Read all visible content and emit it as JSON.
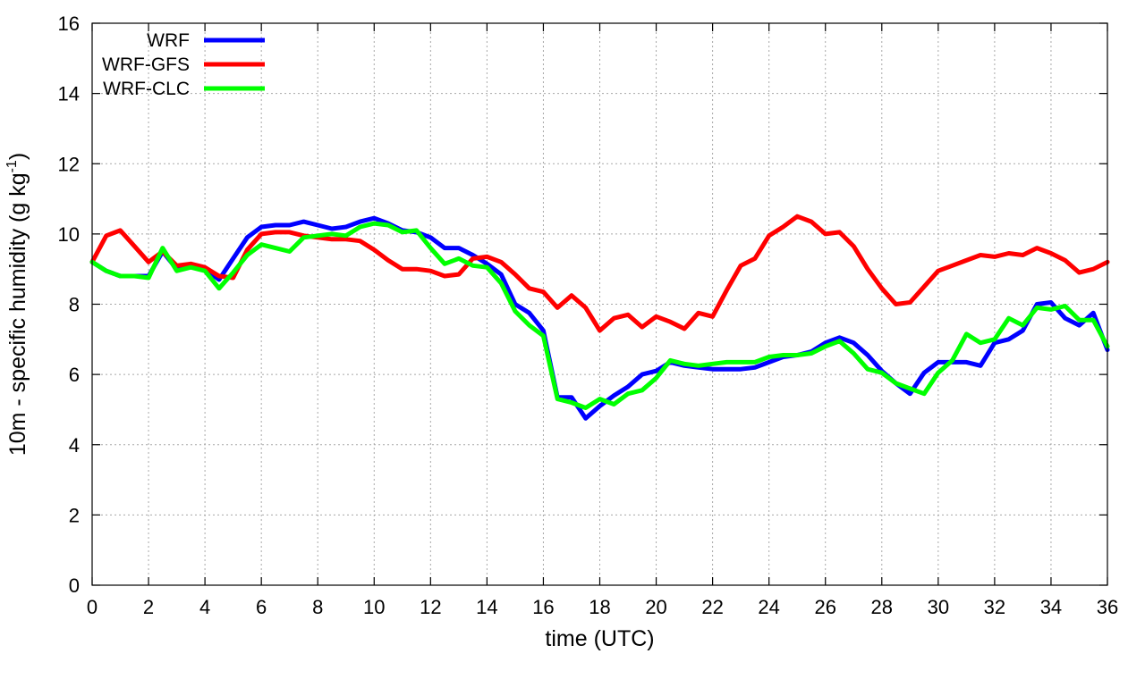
{
  "chart_data": {
    "type": "line",
    "xlabel": "time (UTC)",
    "ylabel": "10m - specific humidity (g kg",
    "ylabel_sup": "-1",
    "ylabel_close": ")",
    "xlim": [
      0,
      36
    ],
    "ylim": [
      0,
      16
    ],
    "xticks": [
      0,
      2,
      4,
      6,
      8,
      10,
      12,
      14,
      16,
      18,
      20,
      22,
      24,
      26,
      28,
      30,
      32,
      34,
      36
    ],
    "yticks": [
      0,
      2,
      4,
      6,
      8,
      10,
      12,
      14,
      16
    ],
    "grid": true,
    "legend_position": "top-left",
    "x": [
      0,
      0.5,
      1,
      1.5,
      2,
      2.5,
      3,
      3.5,
      4,
      4.5,
      5,
      5.5,
      6,
      6.5,
      7,
      7.5,
      8,
      8.5,
      9,
      9.5,
      10,
      10.5,
      11,
      11.5,
      12,
      12.5,
      13,
      13.5,
      14,
      14.5,
      15,
      15.5,
      16,
      16.5,
      17,
      17.5,
      18,
      18.5,
      19,
      19.5,
      20,
      20.5,
      21,
      21.5,
      22,
      22.5,
      23,
      23.5,
      24,
      24.5,
      25,
      25.5,
      26,
      26.5,
      27,
      27.5,
      28,
      28.5,
      29,
      29.5,
      30,
      30.5,
      31,
      31.5,
      32,
      32.5,
      33,
      33.5,
      34,
      34.5,
      35,
      35.5,
      36
    ],
    "series": [
      {
        "name": "WRF",
        "color": "#0000ff",
        "values": [
          9.2,
          8.95,
          8.8,
          8.8,
          8.8,
          9.5,
          9.0,
          9.1,
          9.0,
          8.7,
          9.3,
          9.9,
          10.2,
          10.25,
          10.25,
          10.35,
          10.25,
          10.15,
          10.2,
          10.35,
          10.45,
          10.3,
          10.1,
          10.05,
          9.9,
          9.6,
          9.6,
          9.4,
          9.15,
          8.85,
          8.0,
          7.75,
          7.25,
          5.35,
          5.35,
          4.75,
          5.1,
          5.4,
          5.65,
          6.0,
          6.1,
          6.35,
          6.25,
          6.2,
          6.15,
          6.15,
          6.15,
          6.2,
          6.35,
          6.5,
          6.55,
          6.65,
          6.9,
          7.05,
          6.9,
          6.55,
          6.1,
          5.75,
          5.45,
          6.05,
          6.35,
          6.35,
          6.35,
          6.25,
          6.9,
          7.0,
          7.25,
          8.0,
          8.05,
          7.6,
          7.4,
          7.75,
          6.7
        ]
      },
      {
        "name": "WRF-GFS",
        "color": "#ff0000",
        "values": [
          9.2,
          9.95,
          10.1,
          9.65,
          9.2,
          9.5,
          9.1,
          9.15,
          9.05,
          8.8,
          8.75,
          9.55,
          10.0,
          10.05,
          10.05,
          9.95,
          9.9,
          9.85,
          9.85,
          9.8,
          9.55,
          9.25,
          9.0,
          9.0,
          8.95,
          8.8,
          8.85,
          9.3,
          9.35,
          9.2,
          8.85,
          8.45,
          8.35,
          7.9,
          8.25,
          7.9,
          7.25,
          7.6,
          7.7,
          7.35,
          7.65,
          7.5,
          7.3,
          7.75,
          7.65,
          8.4,
          9.1,
          9.3,
          9.95,
          10.2,
          10.5,
          10.35,
          10.0,
          10.05,
          9.65,
          9.0,
          8.45,
          8.0,
          8.05,
          8.5,
          8.95,
          9.1,
          9.25,
          9.4,
          9.35,
          9.45,
          9.4,
          9.6,
          9.45,
          9.25,
          8.9,
          9.0,
          9.2
        ]
      },
      {
        "name": "WRF-CLC",
        "color": "#00ff00",
        "values": [
          9.2,
          8.95,
          8.8,
          8.8,
          8.75,
          9.6,
          8.95,
          9.05,
          8.95,
          8.45,
          8.9,
          9.4,
          9.7,
          9.6,
          9.5,
          9.9,
          9.95,
          10.0,
          9.95,
          10.2,
          10.3,
          10.25,
          10.05,
          10.1,
          9.6,
          9.15,
          9.3,
          9.1,
          9.05,
          8.6,
          7.8,
          7.4,
          7.1,
          5.3,
          5.2,
          5.05,
          5.3,
          5.15,
          5.45,
          5.55,
          5.9,
          6.4,
          6.3,
          6.25,
          6.3,
          6.35,
          6.35,
          6.35,
          6.5,
          6.55,
          6.55,
          6.6,
          6.8,
          6.95,
          6.6,
          6.15,
          6.05,
          5.75,
          5.6,
          5.45,
          6.05,
          6.4,
          7.15,
          6.9,
          7.0,
          7.6,
          7.4,
          7.9,
          7.85,
          7.95,
          7.55,
          7.55,
          6.8
        ]
      }
    ]
  }
}
